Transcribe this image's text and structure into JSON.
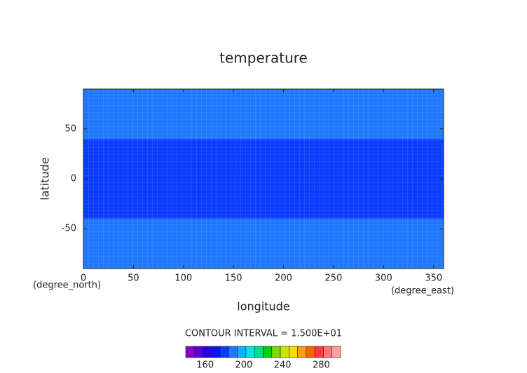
{
  "chart_data": {
    "type": "contour",
    "title": "temperature",
    "xlabel": "longitude",
    "ylabel": "latitude",
    "xunit": "(degree_east)",
    "yunit": "(degree_north)",
    "xlim": [
      0,
      360
    ],
    "xticks": [
      0,
      50,
      100,
      150,
      200,
      250,
      300,
      350
    ],
    "ylim": [
      -90,
      90
    ],
    "yticks": [
      -50,
      0,
      50
    ],
    "y_edges": [
      -90,
      -40,
      40,
      90
    ],
    "fill_colors": [
      "#1e78ff",
      "#0a3cff",
      "#1e78ff"
    ],
    "note": "CONTOUR INTERVAL = 1.500E+01",
    "colorbar": {
      "lim": [
        140,
        300
      ],
      "ticks": [
        160,
        200,
        240,
        280
      ],
      "colors": [
        "#8a00c8",
        "#5a00d8",
        "#2a00e8",
        "#0a14ff",
        "#0a3cff",
        "#1e78ff",
        "#00b4ff",
        "#00e6e6",
        "#00dc8c",
        "#00d200",
        "#78dc00",
        "#c8e600",
        "#ffdc00",
        "#ffa000",
        "#ff6400",
        "#ff3c3c",
        "#ff7878",
        "#ffa0a0"
      ]
    }
  }
}
